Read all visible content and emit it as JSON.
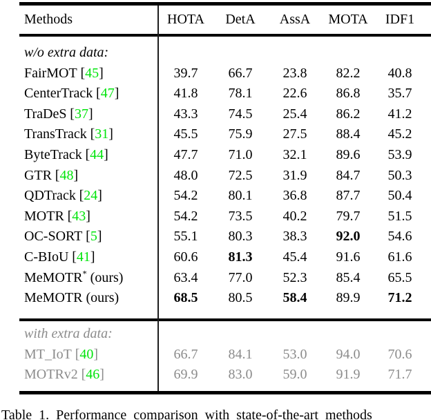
{
  "table": {
    "columns": [
      "Methods",
      "HOTA",
      "DetA",
      "AssA",
      "MOTA",
      "IDF1"
    ],
    "sections": [
      {
        "label": "w/o extra data:",
        "grayed": false,
        "rows": [
          {
            "method": "FairMOT",
            "cite": "45",
            "sup": "",
            "suffix": "",
            "values": [
              "39.7",
              "66.7",
              "23.8",
              "82.2",
              "40.8"
            ],
            "bold": []
          },
          {
            "method": "CenterTrack",
            "cite": "47",
            "sup": "",
            "suffix": "",
            "values": [
              "41.8",
              "78.1",
              "22.6",
              "86.8",
              "35.7"
            ],
            "bold": []
          },
          {
            "method": "TraDeS",
            "cite": "37",
            "sup": "",
            "suffix": "",
            "values": [
              "43.3",
              "74.5",
              "25.4",
              "86.2",
              "41.2"
            ],
            "bold": []
          },
          {
            "method": "TransTrack",
            "cite": "31",
            "sup": "",
            "suffix": "",
            "values": [
              "45.5",
              "75.9",
              "27.5",
              "88.4",
              "45.2"
            ],
            "bold": []
          },
          {
            "method": "ByteTrack",
            "cite": "44",
            "sup": "",
            "suffix": "",
            "values": [
              "47.7",
              "71.0",
              "32.1",
              "89.6",
              "53.9"
            ],
            "bold": []
          },
          {
            "method": "GTR",
            "cite": "48",
            "sup": "",
            "suffix": "",
            "values": [
              "48.0",
              "72.5",
              "31.9",
              "84.7",
              "50.3"
            ],
            "bold": []
          },
          {
            "method": "QDTrack",
            "cite": "24",
            "sup": "",
            "suffix": "",
            "values": [
              "54.2",
              "80.1",
              "36.8",
              "87.7",
              "50.4"
            ],
            "bold": []
          },
          {
            "method": "MOTR",
            "cite": "43",
            "sup": "",
            "suffix": "",
            "values": [
              "54.2",
              "73.5",
              "40.2",
              "79.7",
              "51.5"
            ],
            "bold": []
          },
          {
            "method": "OC-SORT",
            "cite": "5",
            "sup": "",
            "suffix": "",
            "values": [
              "55.1",
              "80.3",
              "38.3",
              "92.0",
              "54.6"
            ],
            "bold": [
              3
            ]
          },
          {
            "method": "C-BIoU",
            "cite": "41",
            "sup": "",
            "suffix": "",
            "values": [
              "60.6",
              "81.3",
              "45.4",
              "91.6",
              "61.6"
            ],
            "bold": [
              1
            ]
          },
          {
            "method": "MeMOTR",
            "cite": "",
            "sup": "*",
            "suffix": " (ours)",
            "values": [
              "63.4",
              "77.0",
              "52.3",
              "85.4",
              "65.5"
            ],
            "bold": []
          },
          {
            "method": "MeMOTR",
            "cite": "",
            "sup": "",
            "suffix": " (ours)",
            "values": [
              "68.5",
              "80.5",
              "58.4",
              "89.9",
              "71.2"
            ],
            "bold": [
              0,
              2,
              4
            ]
          }
        ]
      },
      {
        "label": "with extra data:",
        "grayed": true,
        "rows": [
          {
            "method": "MT_IoT",
            "cite": "40",
            "sup": "",
            "suffix": "",
            "values": [
              "66.7",
              "84.1",
              "53.0",
              "94.0",
              "70.6"
            ],
            "bold": []
          },
          {
            "method": "MOTRv2",
            "cite": "46",
            "sup": "",
            "suffix": "",
            "values": [
              "69.9",
              "83.0",
              "59.0",
              "91.9",
              "71.7"
            ],
            "bold": []
          }
        ]
      }
    ]
  },
  "caption": "Table 1. Performance comparison with state-of-the-art methods",
  "colors": {
    "citation_green": "#00E40B",
    "grayed_text": "#8b8b8b",
    "rule_black": "#000000"
  }
}
